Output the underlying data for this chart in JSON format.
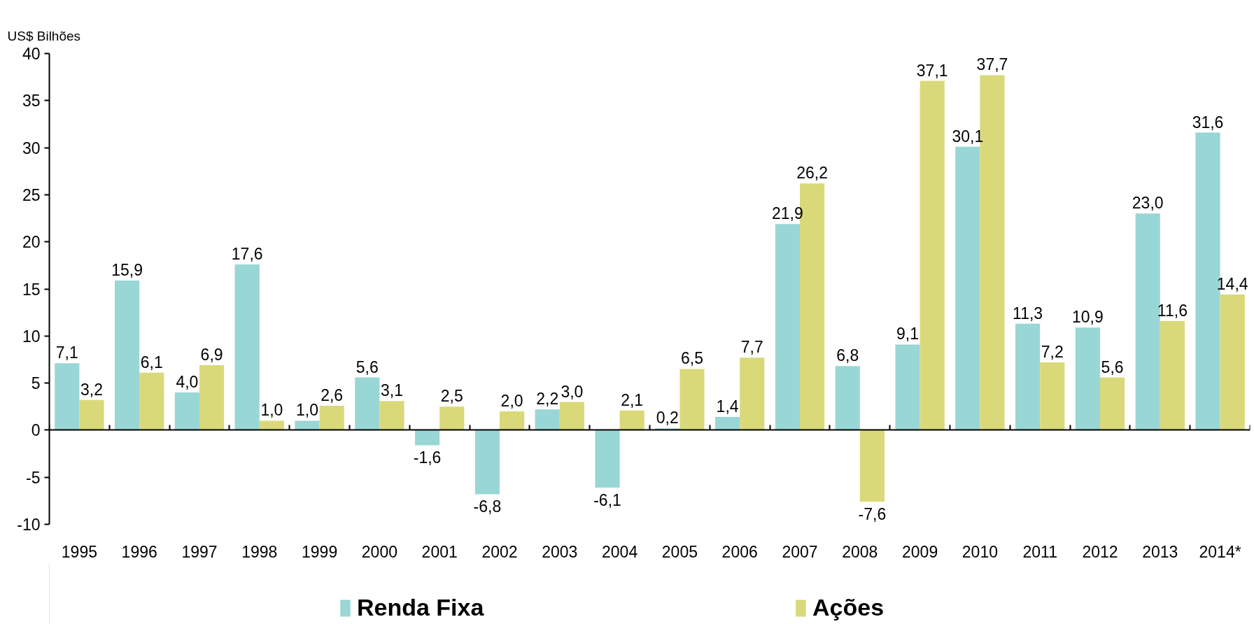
{
  "chart_data": {
    "type": "bar",
    "ylabel": "US$ Bilhões",
    "categories": [
      "1995",
      "1996",
      "1997",
      "1998",
      "1999",
      "2000",
      "2001",
      "2002",
      "2003",
      "2004",
      "2005",
      "2006",
      "2007",
      "2008",
      "2009",
      "2010",
      "2011",
      "2012",
      "2013",
      "2014*"
    ],
    "series": [
      {
        "name": "Renda Fixa",
        "color": "#99d6d6",
        "values": [
          7.1,
          15.9,
          4.0,
          17.6,
          1.0,
          5.6,
          -1.6,
          -6.8,
          2.2,
          -6.1,
          0.2,
          1.4,
          21.9,
          6.8,
          9.1,
          30.1,
          11.3,
          10.9,
          23.0,
          31.6
        ],
        "value_labels": [
          "7,1",
          "15,9",
          "4,0",
          "17,6",
          "1,0",
          "5,6",
          "-1,6",
          "-6,8",
          "2,2",
          "-6,1",
          "0,2",
          "1,4",
          "21,9",
          "6,8",
          "9,1",
          "30,1",
          "11,3",
          "10,9",
          "23,0",
          "31,6"
        ]
      },
      {
        "name": "Ações",
        "color": "#d9d97a",
        "values": [
          3.2,
          6.1,
          6.9,
          1.0,
          2.6,
          3.1,
          2.5,
          2.0,
          3.0,
          2.1,
          6.5,
          7.7,
          26.2,
          -7.6,
          37.1,
          37.7,
          7.2,
          5.6,
          11.6,
          14.4
        ],
        "value_labels": [
          "3,2",
          "6,1",
          "6,9",
          "1,0",
          "2,6",
          "3,1",
          "2,5",
          "2,0",
          "3,0",
          "2,1",
          "6,5",
          "7,7",
          "26,2",
          "-7,6",
          "37,1",
          "37,7",
          "7,2",
          "5,6",
          "11,6",
          "14,4"
        ]
      }
    ],
    "ylim": [
      -10,
      40
    ],
    "yticks": [
      -10,
      -5,
      0,
      5,
      10,
      15,
      20,
      25,
      30,
      35,
      40
    ],
    "legend": "bottom"
  }
}
